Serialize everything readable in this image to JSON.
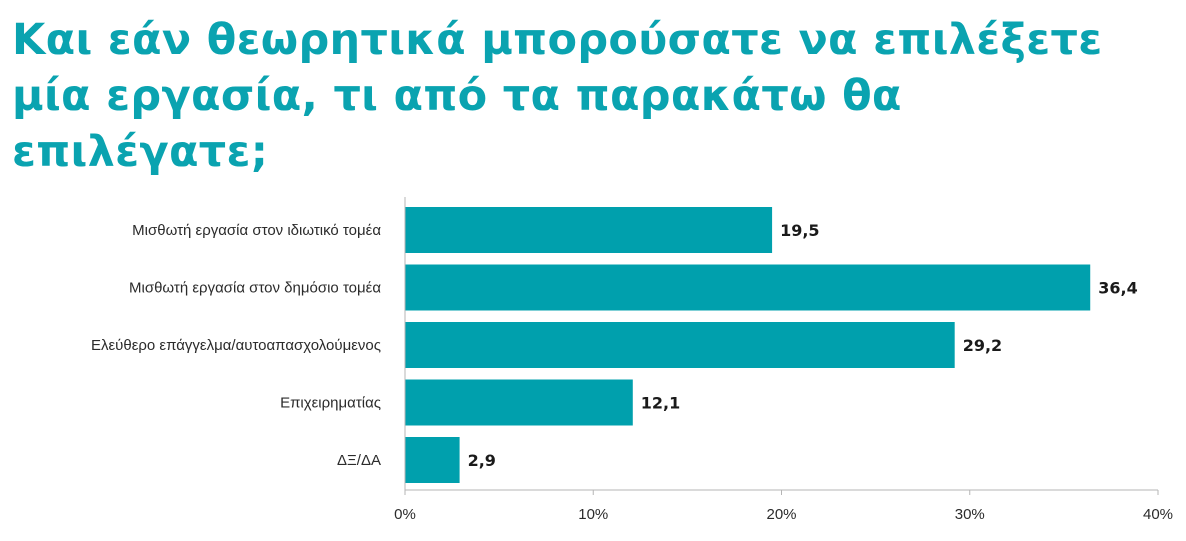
{
  "chart_data": {
    "type": "bar",
    "orientation": "horizontal",
    "title": "Και εάν θεωρητικά μπορούσατε να επιλέξετε μία εργασία, τι από τα παρακάτω θα επιλέγατε;",
    "categories": [
      "Μισθωτή εργασία στον ιδιωτικό τομέα",
      "Μισθωτή εργασία στον δημόσιο τομέα",
      "Ελεύθερο επάγγελμα/αυτοαπασχολούμενος",
      "Επιχειρηματίας",
      "ΔΞ/ΔΑ"
    ],
    "values": [
      19.5,
      36.4,
      29.2,
      12.1,
      2.9
    ],
    "value_labels": [
      "19,5",
      "36,4",
      "29,2",
      "12,1",
      "2,9"
    ],
    "xlim": [
      0,
      40
    ],
    "xticks": [
      0,
      10,
      20,
      30,
      40
    ],
    "xtick_labels": [
      "0%",
      "10%",
      "20%",
      "30%",
      "40%"
    ],
    "xlabel": "",
    "ylabel": "",
    "grid": false,
    "legend": "none",
    "bar_color": "#00a0ad",
    "title_color": "#0aa3b0"
  }
}
